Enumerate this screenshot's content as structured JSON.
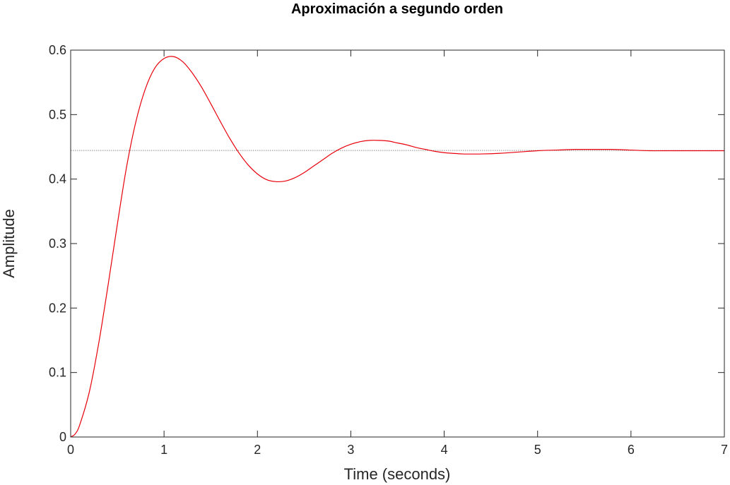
{
  "chart_data": {
    "type": "line",
    "title": "Aproximación a segundo orden",
    "xlabel": "Time (seconds)",
    "ylabel": "Amplitude",
    "xlim": [
      0,
      7
    ],
    "ylim": [
      0,
      0.6
    ],
    "xticks": [
      0,
      1,
      2,
      3,
      4,
      5,
      6,
      7
    ],
    "xtick_labels": [
      "0",
      "1",
      "2",
      "3",
      "4",
      "5",
      "6",
      "7"
    ],
    "yticks": [
      0,
      0.1,
      0.2,
      0.3,
      0.4,
      0.5,
      0.6
    ],
    "ytick_labels": [
      "0",
      "0.1",
      "0.2",
      "0.3",
      "0.4",
      "0.5",
      "0.6"
    ],
    "grid": false,
    "reference_line": {
      "y": 0.4444,
      "style": "dotted",
      "color": "#8c8c8c"
    },
    "series": [
      {
        "color": "#e8000b",
        "x": [
          0,
          0.05,
          0.1,
          0.2,
          0.3,
          0.4,
          0.5,
          0.6,
          0.7,
          0.8,
          0.9,
          1.0,
          1.1,
          1.2,
          1.3,
          1.4,
          1.5,
          1.6,
          1.7,
          1.8,
          1.9,
          2.0,
          2.1,
          2.2,
          2.3,
          2.4,
          2.5,
          2.6,
          2.7,
          2.8,
          2.9,
          3.0,
          3.1,
          3.2,
          3.3,
          3.4,
          3.5,
          3.6,
          3.7,
          3.8,
          3.9,
          4.0,
          4.2,
          4.4,
          4.6,
          4.8,
          5.0,
          5.2,
          5.4,
          5.6,
          5.8,
          6.0,
          6.2,
          6.4,
          6.6,
          6.8,
          7.0
        ],
        "y": [
          0,
          0.005,
          0.02,
          0.07,
          0.145,
          0.235,
          0.33,
          0.42,
          0.49,
          0.54,
          0.572,
          0.587,
          0.59,
          0.582,
          0.565,
          0.543,
          0.517,
          0.49,
          0.464,
          0.441,
          0.422,
          0.408,
          0.399,
          0.396,
          0.397,
          0.402,
          0.41,
          0.42,
          0.43,
          0.44,
          0.448,
          0.454,
          0.458,
          0.46,
          0.46,
          0.459,
          0.456,
          0.453,
          0.449,
          0.446,
          0.443,
          0.441,
          0.439,
          0.439,
          0.44,
          0.442,
          0.444,
          0.445,
          0.446,
          0.446,
          0.446,
          0.445,
          0.444,
          0.444,
          0.444,
          0.444,
          0.444
        ]
      }
    ]
  }
}
